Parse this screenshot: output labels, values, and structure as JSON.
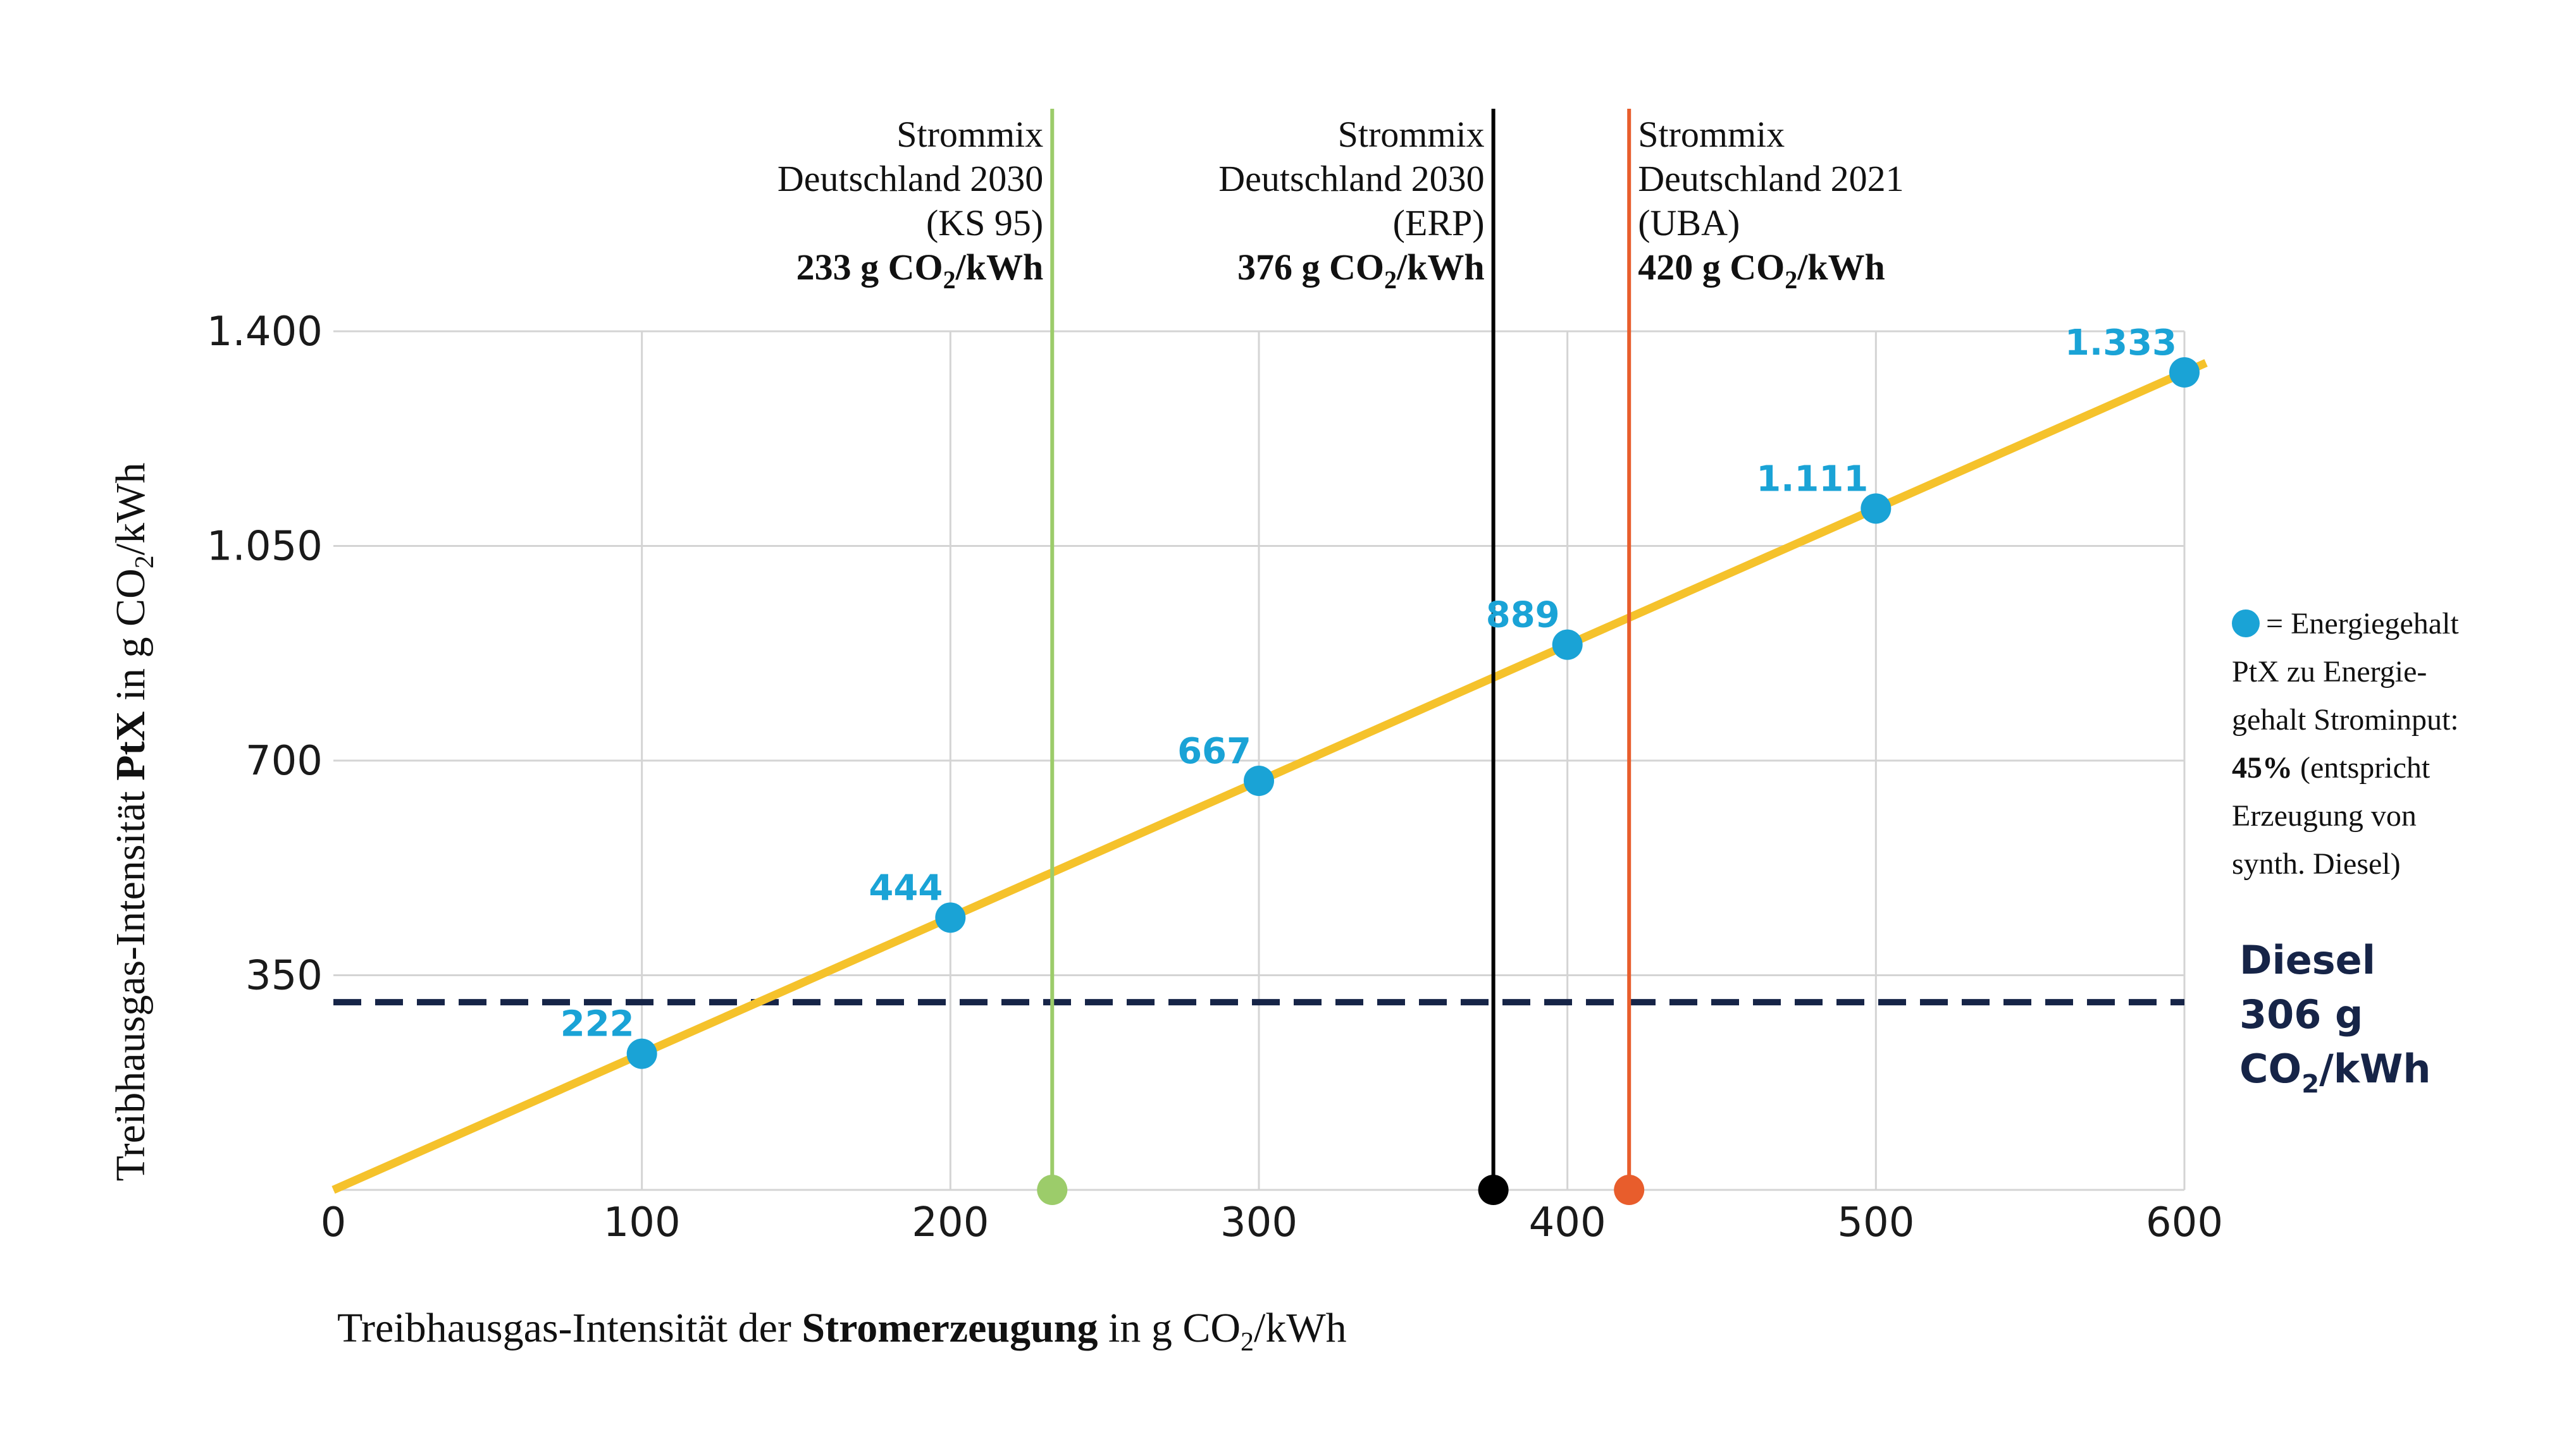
{
  "chart_data": {
    "type": "line",
    "x_axis": {
      "label_prefix": "Treibhausgas-Intensität der ",
      "label_bold": "Stromerzeugung",
      "label_suffix": " in g CO",
      "label_sub": "2",
      "label_unit": "/kWh",
      "xlim": [
        0,
        600
      ],
      "ticks": [
        0,
        100,
        200,
        300,
        400,
        500,
        600
      ],
      "tick_labels": [
        "0",
        "100",
        "200",
        "300",
        "400",
        "500",
        "600"
      ]
    },
    "y_axis": {
      "label_prefix": "Treibhausgas-Intensität ",
      "label_bold": "PtX",
      "label_suffix": " in g CO",
      "label_sub": "2",
      "label_unit": "/kWh",
      "ylim": [
        0,
        1400
      ],
      "ticks": [
        350,
        700,
        1050,
        1400
      ],
      "tick_labels": [
        "350",
        "700",
        "1.050",
        "1.400"
      ]
    },
    "grid": true,
    "series": [
      {
        "x": [
          0,
          100,
          200,
          300,
          400,
          500,
          600
        ],
        "y": [
          0,
          222,
          444,
          667,
          889,
          1111,
          1333
        ],
        "line_extends_to_x": 607,
        "color": "#f5c22b"
      }
    ],
    "points": [
      {
        "x": 100,
        "y": 222,
        "label": "222"
      },
      {
        "x": 200,
        "y": 444,
        "label": "444"
      },
      {
        "x": 300,
        "y": 667,
        "label": "667"
      },
      {
        "x": 400,
        "y": 889,
        "label": "889"
      },
      {
        "x": 500,
        "y": 1111,
        "label": "1.111"
      },
      {
        "x": 600,
        "y": 1333,
        "label": "1.333"
      }
    ],
    "point_color": "#1aa3d6",
    "reference_lines": [
      {
        "x": 233,
        "color": "#9ccc6a",
        "text_side": "left",
        "lines": [
          "Strommix",
          "Deutschland 2030",
          "(KS 95)"
        ],
        "value_prefix": "233 g CO",
        "value_sub": "2",
        "value_unit": "/kWh",
        "value_color": "#9ccc6a"
      },
      {
        "x": 376,
        "color": "#000000",
        "text_side": "left",
        "lines": [
          "Strommix",
          "Deutschland 2030",
          "(ERP)"
        ],
        "value_prefix": "376 g CO",
        "value_sub": "2",
        "value_unit": "/kWh",
        "value_color": "#000000"
      },
      {
        "x": 420,
        "color": "#e85d2c",
        "text_side": "right",
        "lines": [
          "Strommix",
          "Deutschland 2021",
          "(UBA)"
        ],
        "value_prefix": "420 g CO",
        "value_sub": "2",
        "value_unit": "/kWh",
        "value_color": "#e85d2c"
      }
    ],
    "horizontal_line": {
      "y": 306,
      "color": "#162447",
      "style": "dashed",
      "label_lines": [
        "Diesel",
        "306 g"
      ],
      "label_last_prefix": "CO",
      "label_last_sub": "2",
      "label_last_unit": "/kWh"
    },
    "legend": {
      "marker_color": "#1aa3d6",
      "line1": "= Energiegehalt",
      "line2": "PtX zu Energie-",
      "line3": "gehalt Strominput:",
      "line4_bold": "45%",
      "line4_rest": " (entspricht",
      "line5": "Erzeugung von",
      "line6": "synth. Diesel)"
    }
  }
}
